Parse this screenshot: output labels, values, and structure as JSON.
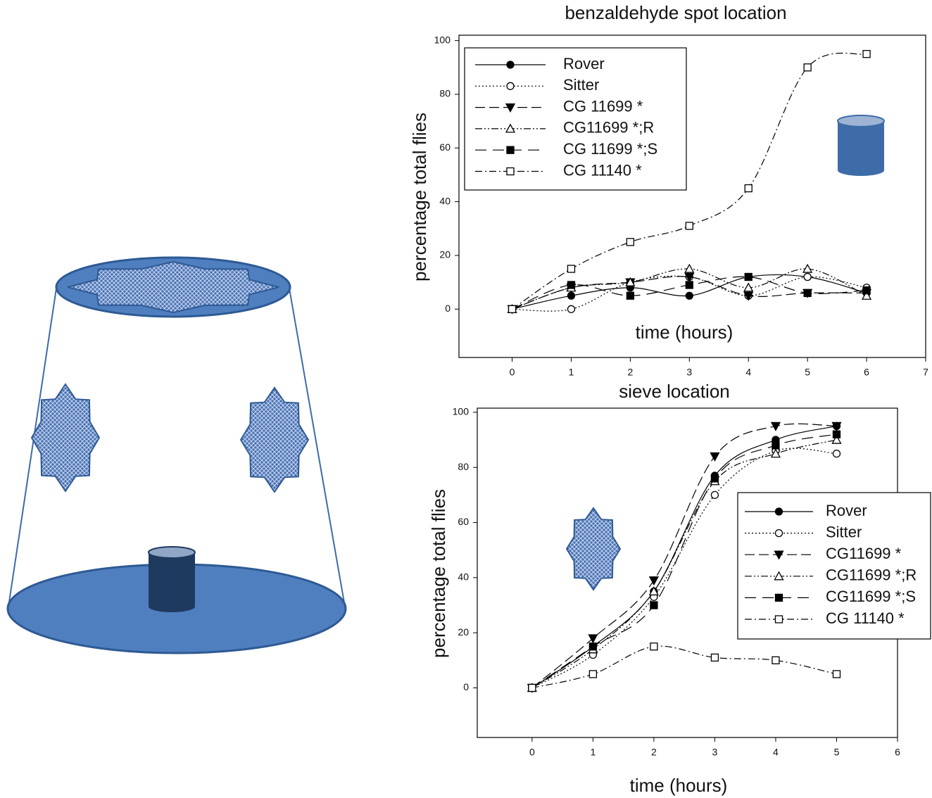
{
  "chart_data": [
    {
      "type": "line",
      "title": "benzaldehyde spot location",
      "xlabel": "time (hours)",
      "ylabel": "percentage total flies",
      "x": [
        0,
        1,
        2,
        3,
        4,
        5,
        6
      ],
      "xlim": [
        -0.9,
        7
      ],
      "xticks": [
        0,
        1,
        2,
        3,
        4,
        5,
        6,
        7
      ],
      "ylim": [
        -18,
        102
      ],
      "yticks": [
        0,
        20,
        40,
        60,
        80,
        100
      ],
      "legend": "upper left",
      "series": [
        {
          "name": "Rover",
          "color": "#000000",
          "marker": "circle-filled",
          "dash": "solid",
          "values": [
            0,
            5,
            8,
            5,
            12,
            12,
            6
          ]
        },
        {
          "name": "Sitter",
          "color": "#000000",
          "marker": "circle-open",
          "dash": "dotted",
          "values": [
            0,
            0,
            10,
            12,
            5,
            12,
            8
          ]
        },
        {
          "name": "CG 11699 *",
          "color": "#000000",
          "marker": "triangle-down-filled",
          "dash": "dashed",
          "values": [
            0,
            8,
            10,
            12,
            5,
            6,
            6
          ]
        },
        {
          "name": "CG11699 *;R",
          "color": "#000000",
          "marker": "triangle-up-open",
          "dash": "dash-dot-dot",
          "values": [
            0,
            8,
            10,
            15,
            8,
            15,
            5
          ]
        },
        {
          "name": "CG 11699 *;S",
          "color": "#000000",
          "marker": "square-filled",
          "dash": "long-dash",
          "values": [
            0,
            9,
            5,
            9,
            12,
            6,
            7
          ]
        },
        {
          "name": "CG 11140 *",
          "color": "#000000",
          "marker": "square-open",
          "dash": "dash-dot",
          "values": [
            0,
            15,
            25,
            31,
            45,
            90,
            95
          ]
        }
      ]
    },
    {
      "type": "line",
      "title": "sieve location",
      "xlabel": "time (hours)",
      "ylabel": "percentage total flies",
      "x": [
        0,
        1,
        2,
        3,
        4,
        5
      ],
      "xlim": [
        -0.9,
        6
      ],
      "xticks": [
        0,
        1,
        2,
        3,
        4,
        5,
        6
      ],
      "ylim": [
        -18,
        101.5
      ],
      "yticks": [
        0,
        20,
        40,
        60,
        80,
        100
      ],
      "legend": "center right",
      "series": [
        {
          "name": "Rover",
          "color": "#000000",
          "marker": "circle-filled",
          "dash": "solid",
          "values": [
            0,
            15,
            35,
            77,
            90,
            95
          ]
        },
        {
          "name": "Sitter",
          "color": "#000000",
          "marker": "circle-open",
          "dash": "dotted",
          "values": [
            0,
            12,
            33,
            70,
            86,
            85
          ]
        },
        {
          "name": "CG11699 *",
          "color": "#000000",
          "marker": "triangle-down-filled",
          "dash": "dashed",
          "values": [
            0,
            18,
            39,
            84,
            95,
            95
          ]
        },
        {
          "name": "CG11699 *;R",
          "color": "#000000",
          "marker": "triangle-up-open",
          "dash": "dash-dot-dot",
          "values": [
            0,
            14,
            35,
            75,
            85,
            90
          ]
        },
        {
          "name": "CG11699 *;S",
          "color": "#000000",
          "marker": "square-filled",
          "dash": "long-dash",
          "values": [
            0,
            15,
            30,
            76,
            88,
            92
          ]
        },
        {
          "name": "CG 11140 *",
          "color": "#000000",
          "marker": "square-open",
          "dash": "dash-dot",
          "values": [
            0,
            5,
            15,
            11,
            10,
            5
          ]
        }
      ]
    }
  ]
}
